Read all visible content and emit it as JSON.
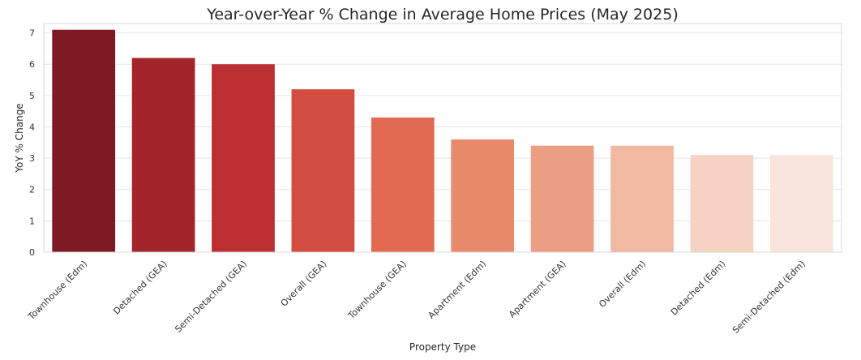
{
  "chart_data": {
    "type": "bar",
    "title": "Year-over-Year % Change in Average Home Prices (May 2025)",
    "xlabel": "Property Type",
    "ylabel": "YoY % Change",
    "categories": [
      "Townhouse (Edm)",
      "Detached (GEA)",
      "Semi-Detached (GEA)",
      "Overall (GEA)",
      "Townhouse (GEA)",
      "Apartment (Edm)",
      "Apartment (GEA)",
      "Overall (Edm)",
      "Detached (Edm)",
      "Semi-Detached (Edm)"
    ],
    "values": [
      7.1,
      6.2,
      6.0,
      5.2,
      4.3,
      3.6,
      3.4,
      3.4,
      3.1,
      3.1
    ],
    "ylim": [
      0,
      7.3
    ],
    "yticks": [
      0,
      1,
      2,
      3,
      4,
      5,
      6,
      7
    ],
    "grid": true,
    "legend": "none",
    "colors": [
      "#7f1a24",
      "#a3242b",
      "#bb2f33",
      "#d24c40",
      "#e26a52",
      "#ea8a6c",
      "#ec9e85",
      "#f1b9a2",
      "#f5d2c2",
      "#f9e5dc"
    ]
  }
}
